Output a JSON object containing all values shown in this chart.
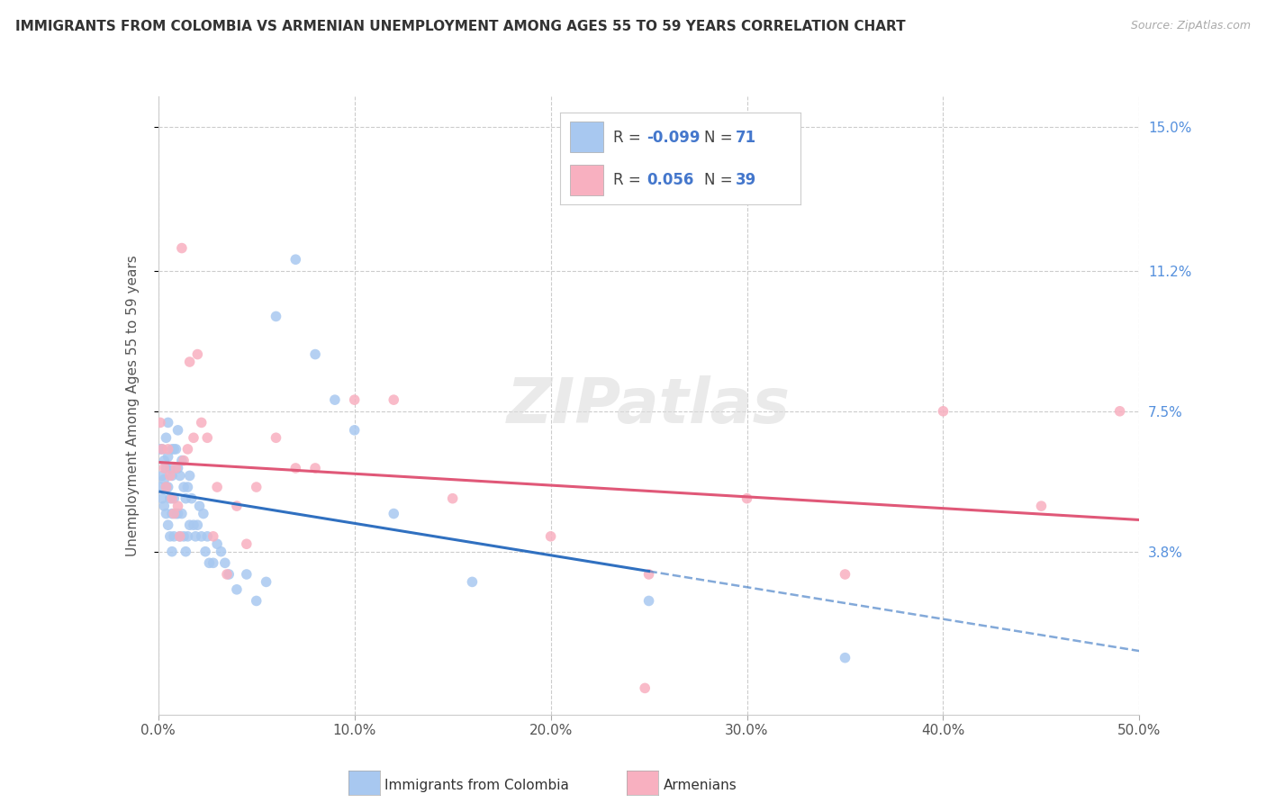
{
  "title": "IMMIGRANTS FROM COLOMBIA VS ARMENIAN UNEMPLOYMENT AMONG AGES 55 TO 59 YEARS CORRELATION CHART",
  "source": "Source: ZipAtlas.com",
  "ylabel": "Unemployment Among Ages 55 to 59 years",
  "xlim": [
    0.0,
    0.5
  ],
  "ylim": [
    -0.005,
    0.158
  ],
  "plot_ylim": [
    0.0,
    0.155
  ],
  "right_yticks": [
    0.038,
    0.075,
    0.112,
    0.15
  ],
  "right_yticklabels": [
    "3.8%",
    "7.5%",
    "11.2%",
    "15.0%"
  ],
  "xticks": [
    0.0,
    0.1,
    0.2,
    0.3,
    0.4,
    0.5
  ],
  "xticklabels": [
    "0.0%",
    "10.0%",
    "20.0%",
    "30.0%",
    "40.0%",
    "50.0%"
  ],
  "colombia_color": "#a8c8f0",
  "armenia_color": "#f8b0c0",
  "colombia_R": -0.099,
  "colombia_N": 71,
  "armenia_R": 0.056,
  "armenia_N": 39,
  "colombia_line_color": "#3070c0",
  "armenia_line_color": "#e05878",
  "watermark": "ZIPatlas",
  "colombia_x": [
    0.001,
    0.001,
    0.002,
    0.002,
    0.002,
    0.003,
    0.003,
    0.003,
    0.004,
    0.004,
    0.004,
    0.004,
    0.005,
    0.005,
    0.005,
    0.005,
    0.006,
    0.006,
    0.006,
    0.007,
    0.007,
    0.007,
    0.007,
    0.008,
    0.008,
    0.008,
    0.009,
    0.009,
    0.01,
    0.01,
    0.01,
    0.011,
    0.011,
    0.012,
    0.012,
    0.013,
    0.013,
    0.014,
    0.014,
    0.015,
    0.015,
    0.016,
    0.016,
    0.017,
    0.018,
    0.019,
    0.02,
    0.021,
    0.022,
    0.023,
    0.024,
    0.025,
    0.026,
    0.028,
    0.03,
    0.032,
    0.034,
    0.036,
    0.04,
    0.045,
    0.05,
    0.055,
    0.06,
    0.07,
    0.08,
    0.09,
    0.1,
    0.12,
    0.16,
    0.25,
    0.35
  ],
  "colombia_y": [
    0.065,
    0.055,
    0.065,
    0.058,
    0.052,
    0.062,
    0.057,
    0.05,
    0.068,
    0.06,
    0.055,
    0.048,
    0.072,
    0.063,
    0.055,
    0.045,
    0.06,
    0.052,
    0.042,
    0.065,
    0.058,
    0.048,
    0.038,
    0.065,
    0.052,
    0.042,
    0.065,
    0.048,
    0.07,
    0.06,
    0.048,
    0.058,
    0.042,
    0.062,
    0.048,
    0.055,
    0.042,
    0.052,
    0.038,
    0.055,
    0.042,
    0.058,
    0.045,
    0.052,
    0.045,
    0.042,
    0.045,
    0.05,
    0.042,
    0.048,
    0.038,
    0.042,
    0.035,
    0.035,
    0.04,
    0.038,
    0.035,
    0.032,
    0.028,
    0.032,
    0.025,
    0.03,
    0.1,
    0.115,
    0.09,
    0.078,
    0.07,
    0.048,
    0.03,
    0.025,
    0.01
  ],
  "armenia_x": [
    0.001,
    0.002,
    0.003,
    0.004,
    0.005,
    0.006,
    0.007,
    0.008,
    0.009,
    0.01,
    0.011,
    0.012,
    0.013,
    0.015,
    0.016,
    0.018,
    0.02,
    0.022,
    0.025,
    0.028,
    0.03,
    0.035,
    0.04,
    0.045,
    0.05,
    0.06,
    0.07,
    0.08,
    0.1,
    0.12,
    0.15,
    0.2,
    0.25,
    0.3,
    0.35,
    0.4,
    0.45,
    0.49,
    0.248
  ],
  "armenia_y": [
    0.072,
    0.065,
    0.06,
    0.055,
    0.065,
    0.058,
    0.052,
    0.048,
    0.06,
    0.05,
    0.042,
    0.118,
    0.062,
    0.065,
    0.088,
    0.068,
    0.09,
    0.072,
    0.068,
    0.042,
    0.055,
    0.032,
    0.05,
    0.04,
    0.055,
    0.068,
    0.06,
    0.06,
    0.078,
    0.078,
    0.052,
    0.042,
    0.032,
    0.052,
    0.032,
    0.075,
    0.05,
    0.075,
    0.002
  ]
}
